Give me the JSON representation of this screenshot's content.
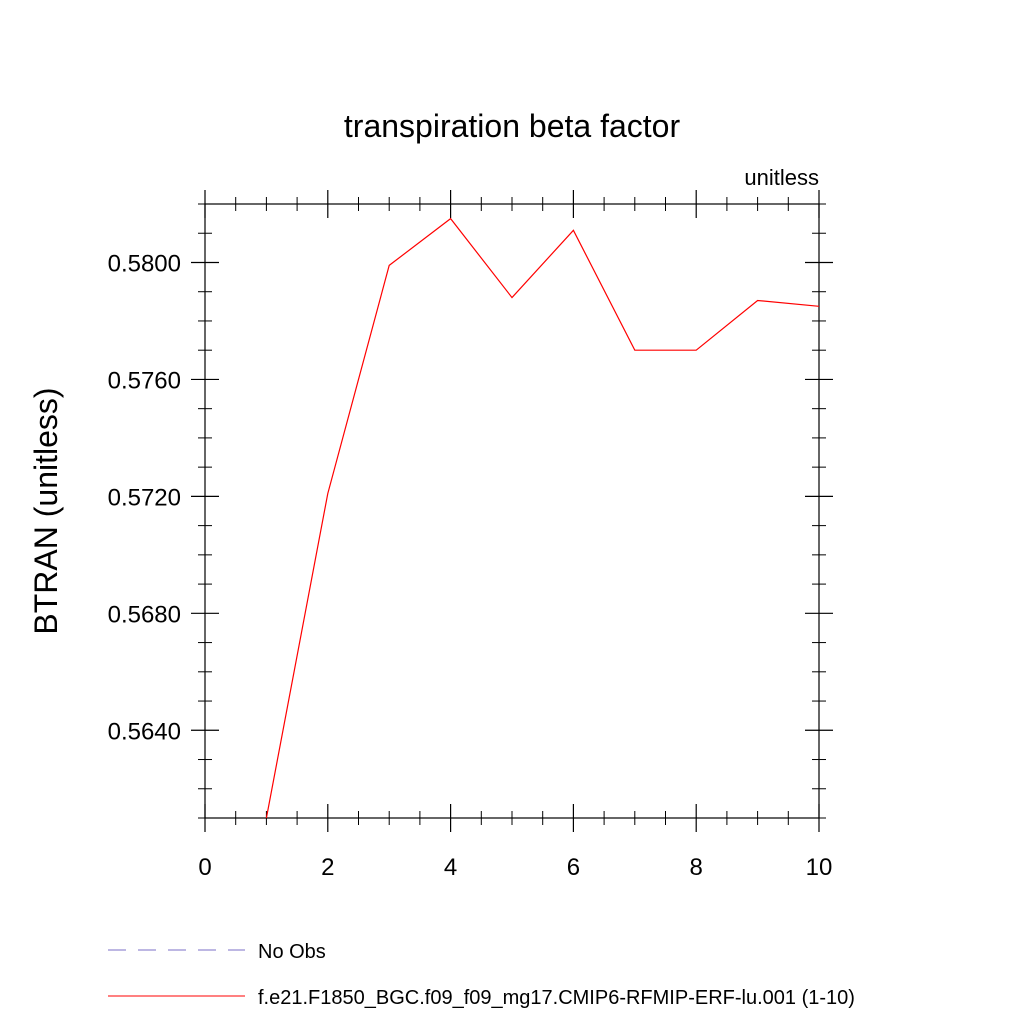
{
  "chart_data": {
    "type": "line",
    "title": "transpiration beta factor",
    "units": "unitless",
    "ylabel": "BTRAN  (unitless)",
    "xlabel": "",
    "xlim": [
      0,
      10
    ],
    "ylim": [
      0.561,
      0.582
    ],
    "xticks": [
      "0",
      "2",
      "4",
      "6",
      "8",
      "10"
    ],
    "yticks": [
      "0.5640",
      "0.5680",
      "0.5720",
      "0.5760",
      "0.5800"
    ],
    "series": [
      {
        "name": "No Obs",
        "color": "#7b6fc7",
        "style": "dashed",
        "values": []
      },
      {
        "name": "f.e21.F1850_BGC.f09_f09_mg17.CMIP6-RFMIP-ERF-lu.001 (1-10)",
        "color": "#ff0000",
        "style": "solid",
        "x": [
          1,
          2,
          3,
          4,
          5,
          6,
          7,
          8,
          9,
          10
        ],
        "values": [
          0.561,
          0.5721,
          0.5799,
          0.5815,
          0.5788,
          0.5811,
          0.577,
          0.577,
          0.5787,
          0.5785
        ]
      }
    ],
    "grid": false,
    "legend_position": "bottom"
  }
}
